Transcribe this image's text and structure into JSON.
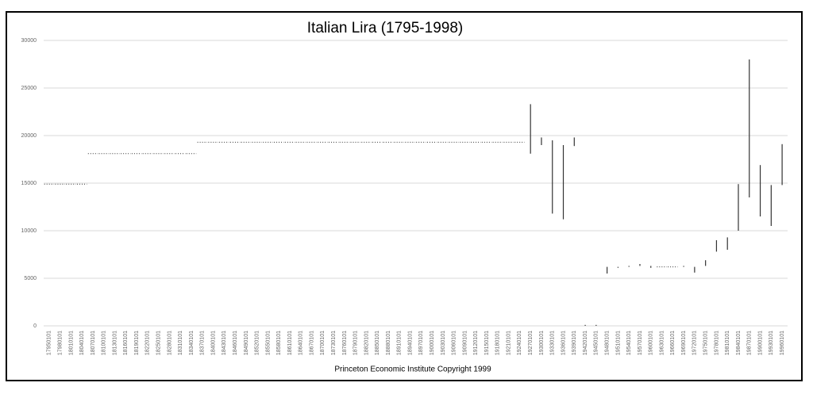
{
  "chart_data": {
    "type": "hilo",
    "title": "Italian Lira (1795-1998)",
    "footnote": "Princeton Economic Institute Copyright 1999",
    "categories": [
      "17950101",
      "17980101",
      "18010101",
      "18040101",
      "18070101",
      "18100101",
      "18130101",
      "18160101",
      "18190101",
      "18220101",
      "18250101",
      "18280101",
      "18310101",
      "18340101",
      "18370101",
      "18400101",
      "18430101",
      "18460101",
      "18490101",
      "18520101",
      "18550101",
      "18580101",
      "18610101",
      "18640101",
      "18670101",
      "18700101",
      "18730101",
      "18760101",
      "18790101",
      "18820101",
      "18850101",
      "18880101",
      "18910101",
      "18940101",
      "18970101",
      "19000101",
      "19030101",
      "19060101",
      "19090101",
      "19120101",
      "19150101",
      "19180101",
      "19210101",
      "19240101",
      "19270101",
      "19300101",
      "19330101",
      "19360101",
      "19390101",
      "19420101",
      "19450101",
      "19480101",
      "19510101",
      "19540101",
      "19570101",
      "19600101",
      "19630101",
      "19660101",
      "19690101",
      "19720101",
      "19750101",
      "19780101",
      "19810101",
      "19840101",
      "19870101",
      "19900101",
      "19930101",
      "19960101"
    ],
    "high": [
      14900,
      14900,
      14900,
      14900,
      18100,
      18100,
      18100,
      18100,
      18100,
      18100,
      18100,
      18100,
      18100,
      18100,
      19300,
      19300,
      19300,
      19300,
      19300,
      19300,
      19300,
      19300,
      19300,
      19300,
      19300,
      19300,
      19300,
      19300,
      19300,
      19300,
      19300,
      19300,
      19300,
      19300,
      19300,
      19300,
      19300,
      19300,
      19300,
      19300,
      19300,
      19300,
      19300,
      19300,
      23300,
      19800,
      19500,
      19000,
      19800,
      100,
      100,
      6200,
      6200,
      6300,
      6500,
      6300,
      6200,
      6200,
      6300,
      6200,
      6900,
      9000,
      9300,
      14900,
      28000,
      16900,
      14800,
      19100
    ],
    "low": [
      14900,
      14900,
      14900,
      14900,
      18100,
      18100,
      18100,
      18100,
      18100,
      18100,
      18100,
      18100,
      18100,
      18100,
      19300,
      19300,
      19300,
      19300,
      19300,
      19300,
      19300,
      19300,
      19300,
      19300,
      19300,
      19300,
      19300,
      19300,
      19300,
      19300,
      19300,
      19300,
      19300,
      19300,
      19300,
      19300,
      19300,
      19300,
      19300,
      19300,
      19300,
      19300,
      19300,
      19300,
      18100,
      19000,
      11800,
      11200,
      18900,
      0,
      0,
      5500,
      6100,
      6200,
      6300,
      6100,
      6200,
      6200,
      6200,
      5600,
      6300,
      7800,
      8000,
      10000,
      13500,
      11500,
      10500,
      14800
    ],
    "color": "#333333",
    "ylim": [
      0,
      30000
    ],
    "yticks": [
      0,
      5000,
      10000,
      15000,
      20000,
      25000,
      30000
    ],
    "grid": true
  }
}
